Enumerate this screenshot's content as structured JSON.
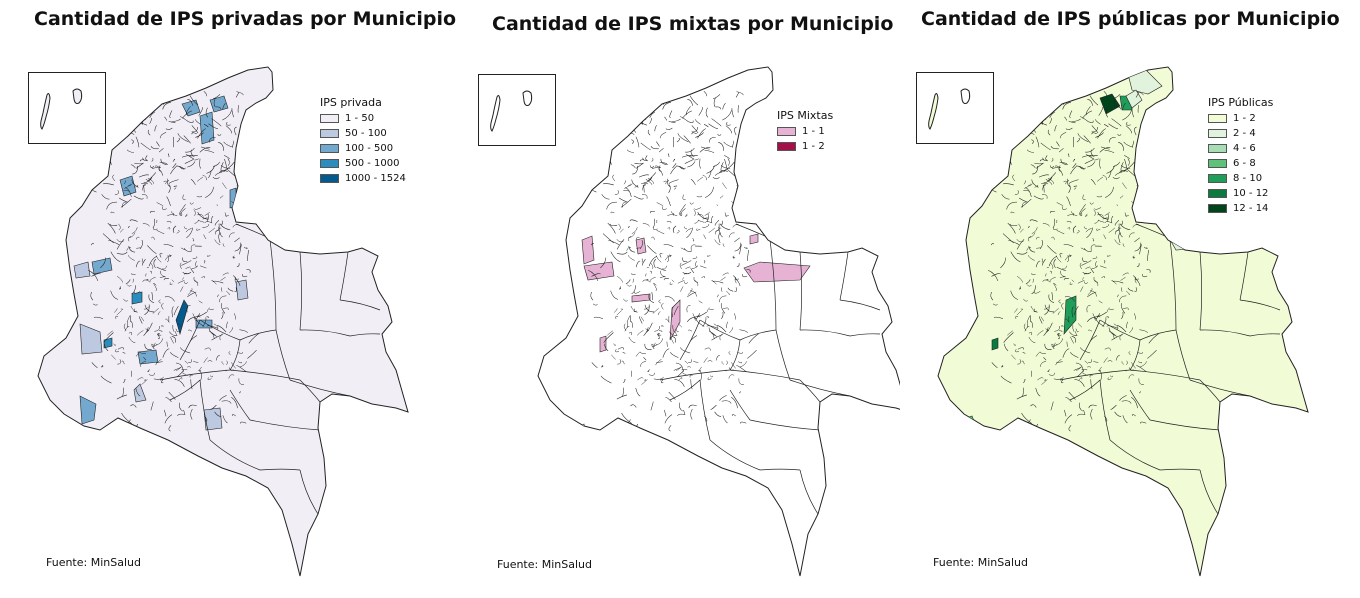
{
  "colors": {
    "outline": "#222222",
    "private_base": "#f1eef6",
    "mixed_base": "#ffffff",
    "public_base": "#f1fbd6"
  },
  "panels": [
    {
      "id": "private",
      "title": "Cantidad de IPS privadas por Municipio",
      "source": "Fuente: MinSalud",
      "legend": {
        "title": "IPS privada",
        "classes": [
          {
            "label": "1 - 50",
            "color": "#f1eef6"
          },
          {
            "label": "50 - 100",
            "color": "#bdc9e1"
          },
          {
            "label": "100 - 500",
            "color": "#74a9cf"
          },
          {
            "label": "500 - 1000",
            "color": "#2b8cbe"
          },
          {
            "label": "1000 - 1524",
            "color": "#045a8d"
          }
        ]
      }
    },
    {
      "id": "mixed",
      "title": "Cantidad de IPS mixtas por Municipio",
      "source": "Fuente: MinSalud",
      "legend": {
        "title": "IPS Mixtas",
        "classes": [
          {
            "label": "1 - 1",
            "color": "#e7b3d4"
          },
          {
            "label": "1 - 2",
            "color": "#a50f48"
          }
        ]
      }
    },
    {
      "id": "public",
      "title": "Cantidad de IPS públicas por Municipio",
      "source": "Fuente: MinSalud",
      "legend": {
        "title": "IPS Públicas",
        "classes": [
          {
            "label": "1 - 2",
            "color": "#f1fbd6"
          },
          {
            "label": "2 - 4",
            "color": "#e1f3dc"
          },
          {
            "label": "4 - 6",
            "color": "#a8ddb5"
          },
          {
            "label": "6 - 8",
            "color": "#5fc27a"
          },
          {
            "label": "8 - 10",
            "color": "#1f9e5a"
          },
          {
            "label": "10 - 12",
            "color": "#0b7a3e"
          },
          {
            "label": "12 - 14",
            "color": "#00441b"
          }
        ]
      }
    }
  ]
}
